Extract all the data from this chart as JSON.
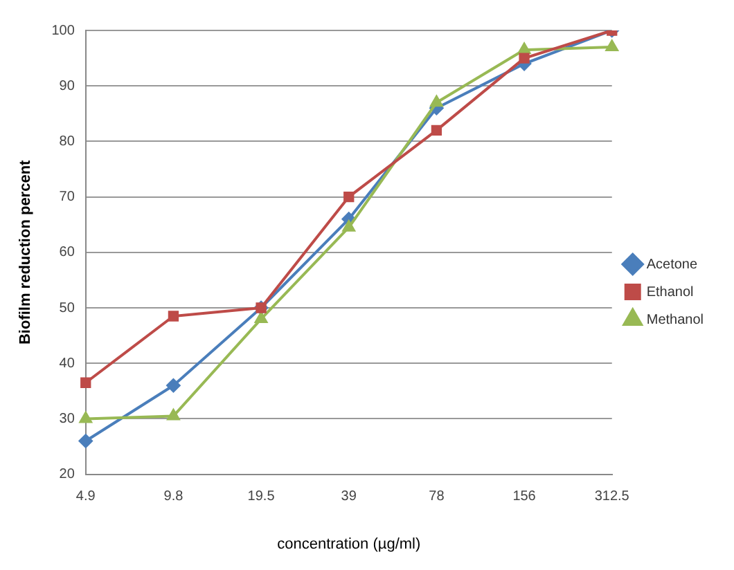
{
  "chart_data": {
    "type": "line",
    "xlabel": "concentration (µg/ml)",
    "ylabel": "Biofilm reduction percent",
    "categories": [
      "4.9",
      "9.8",
      "19.5",
      "39",
      "78",
      "156",
      "312.5"
    ],
    "series": [
      {
        "name": "Acetone",
        "color": "#4a7ebb",
        "marker": "diamond",
        "values": [
          26,
          36,
          50,
          66,
          86,
          94,
          100
        ]
      },
      {
        "name": "Ethanol",
        "color": "#be4b48",
        "marker": "square",
        "values": [
          36.5,
          48.5,
          50,
          70,
          82,
          95,
          100
        ]
      },
      {
        "name": "Methanol",
        "color": "#98b954",
        "marker": "triangle",
        "values": [
          30,
          30.5,
          48,
          64.5,
          87,
          96.5,
          97
        ]
      }
    ],
    "ylim": [
      20,
      100
    ],
    "yticks": [
      20,
      30,
      40,
      50,
      60,
      70,
      80,
      90,
      100
    ],
    "grid": "y",
    "legend": "right",
    "line_style": "solid"
  }
}
